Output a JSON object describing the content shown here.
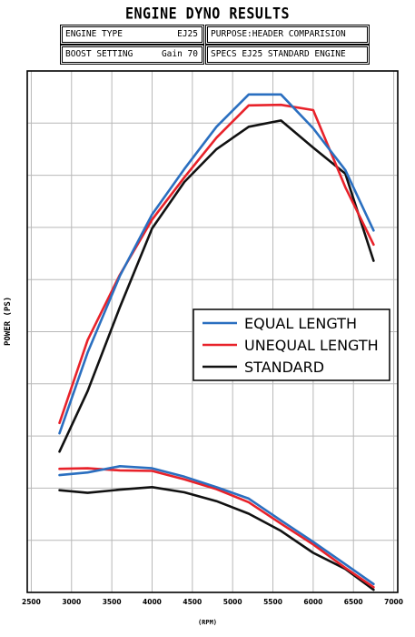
{
  "header": {
    "title": "ENGINE DYNO RESULTS",
    "engine_type_label": "ENGINE TYPE",
    "engine_type_value": "EJ25",
    "purpose": "PURPOSE:HEADER COMPARISION",
    "boost_label": "BOOST SETTING",
    "boost_value": "Gain 70",
    "specs": "SPECS  EJ25 STANDARD ENGINE"
  },
  "chart_data": {
    "type": "line",
    "title": "ENGINE DYNO RESULTS",
    "xlabel": "(RPM)",
    "ylabel": "POWER (PS)",
    "xlim": [
      2450,
      7050
    ],
    "ylim": [
      0,
      10
    ],
    "grid": true,
    "y_tick_labels": false,
    "x_ticks": [
      2500,
      3000,
      3500,
      4000,
      4500,
      5000,
      5500,
      6000,
      6500,
      7000
    ],
    "legend_position": "right-middle",
    "legend": [
      {
        "name": "EQUAL LENGTH",
        "color": "#2a6fc0"
      },
      {
        "name": "UNEQUAL LENGTH",
        "color": "#e8222a"
      },
      {
        "name": "STANDARD",
        "color": "#111111"
      }
    ],
    "series": [
      {
        "name": "EQUAL LENGTH",
        "group": "power",
        "color": "#2a6fc0",
        "x": [
          2850,
          3200,
          3600,
          4000,
          4400,
          4800,
          5200,
          5600,
          6000,
          6400,
          6750
        ],
        "y": [
          3.05,
          4.6,
          6.07,
          7.25,
          8.12,
          8.93,
          9.55,
          9.55,
          8.9,
          8.1,
          6.94
        ]
      },
      {
        "name": "UNEQUAL LENGTH",
        "group": "power",
        "color": "#e8222a",
        "x": [
          2850,
          3200,
          3600,
          4000,
          4400,
          4800,
          5200,
          5600,
          6000,
          6400,
          6750
        ],
        "y": [
          3.25,
          4.84,
          6.09,
          7.15,
          7.96,
          8.72,
          9.34,
          9.35,
          9.25,
          7.77,
          6.67
        ]
      },
      {
        "name": "STANDARD",
        "group": "power",
        "color": "#111111",
        "x": [
          2850,
          3200,
          3600,
          4000,
          4400,
          4800,
          5200,
          5600,
          6000,
          6400,
          6750
        ],
        "y": [
          2.7,
          3.86,
          5.47,
          6.98,
          7.87,
          8.5,
          8.93,
          9.05,
          8.53,
          8.03,
          6.36
        ]
      },
      {
        "name": "EQUAL LENGTH",
        "group": "torque",
        "color": "#2a6fc0",
        "x": [
          2850,
          3200,
          3600,
          4000,
          4400,
          4800,
          5200,
          5600,
          6000,
          6400,
          6750
        ],
        "y": [
          2.25,
          2.3,
          2.42,
          2.38,
          2.22,
          2.02,
          1.8,
          1.38,
          0.97,
          0.54,
          0.16
        ]
      },
      {
        "name": "UNEQUAL LENGTH",
        "group": "torque",
        "color": "#e8222a",
        "x": [
          2850,
          3200,
          3600,
          4000,
          4400,
          4800,
          5200,
          5600,
          6000,
          6400,
          6750
        ],
        "y": [
          2.37,
          2.38,
          2.34,
          2.33,
          2.17,
          1.98,
          1.73,
          1.32,
          0.92,
          0.47,
          0.1
        ]
      },
      {
        "name": "STANDARD",
        "group": "torque",
        "color": "#111111",
        "x": [
          2850,
          3200,
          3600,
          4000,
          4400,
          4800,
          5200,
          5600,
          6000,
          6400,
          6750
        ],
        "y": [
          1.96,
          1.91,
          1.97,
          2.02,
          1.92,
          1.75,
          1.51,
          1.18,
          0.76,
          0.45,
          0.05
        ]
      }
    ]
  }
}
